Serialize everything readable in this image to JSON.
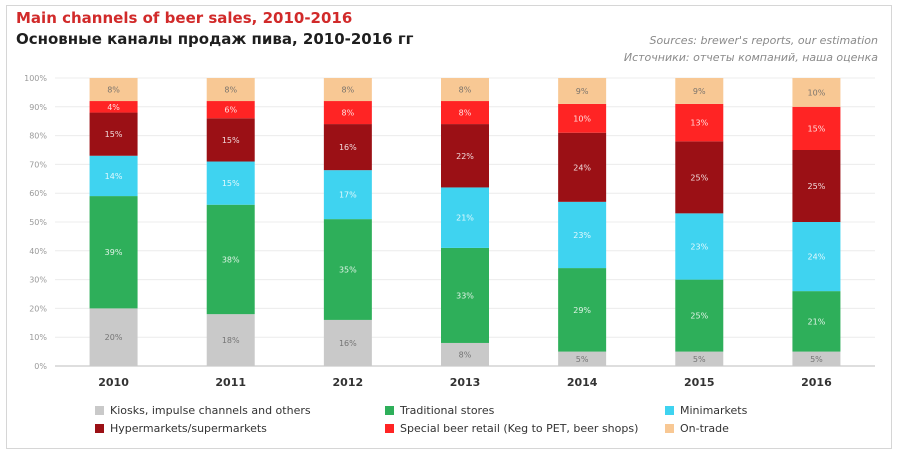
{
  "header": {
    "title_en": "Main channels of beer sales, 2010-2016",
    "title_ru": "Основные каналы продаж пива, 2010-2016 гг",
    "source_en": "Sources: brewer's reports, our estimation",
    "source_ru": "Источники: отчеты компаний, наша оценка"
  },
  "colors": {
    "kiosks": "#c9c9c9",
    "traditional": "#2eaf5a",
    "minimarkets": "#3fd3f0",
    "hypermarkets": "#9b1015",
    "special": "#ff2424",
    "ontrade": "#f8c894"
  },
  "chart_data": {
    "type": "bar",
    "stacked": true,
    "title": "Main channels of beer sales, 2010-2016",
    "categories": [
      "2010",
      "2011",
      "2012",
      "2013",
      "2014",
      "2015",
      "2016"
    ],
    "ylim": [
      0,
      100
    ],
    "y_unit": "%",
    "legend_position": "bottom",
    "series": [
      {
        "name": "Kiosks, impulse channels and others",
        "color_key": "kiosks",
        "values": [
          20,
          18,
          16,
          8,
          5,
          5,
          5
        ]
      },
      {
        "name": "Traditional stores",
        "color_key": "traditional",
        "values": [
          39,
          38,
          35,
          33,
          29,
          25,
          21
        ]
      },
      {
        "name": "Minimarkets",
        "color_key": "minimarkets",
        "values": [
          14,
          15,
          17,
          21,
          23,
          23,
          24
        ]
      },
      {
        "name": "Hypermarkets/supermarkets",
        "color_key": "hypermarkets",
        "values": [
          15,
          15,
          16,
          22,
          24,
          25,
          25
        ]
      },
      {
        "name": "Special beer retail (Keg to PET, beer shops)",
        "color_key": "special",
        "values": [
          4,
          6,
          8,
          8,
          10,
          13,
          15
        ]
      },
      {
        "name": "On-trade",
        "color_key": "ontrade",
        "values": [
          8,
          8,
          8,
          8,
          9,
          9,
          10
        ]
      }
    ]
  }
}
